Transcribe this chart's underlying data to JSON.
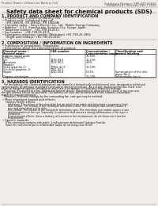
{
  "bg_color": "#f0ede8",
  "title": "Safety data sheet for chemical products (SDS)",
  "header_left": "Product Name: Lithium Ion Battery Cell",
  "header_right_line1": "Substance Number: SBR-049-00010",
  "header_right_line2": "Established / Revision: Dec.7.2010",
  "section1_title": "1. PRODUCT AND COMPANY IDENTIFICATION",
  "section1_lines": [
    "• Product name: Lithium Ion Battery Cell",
    "• Product code: Cylindrical-type cell",
    "    (IFR 18650U, IFR 18650L, IFR 18650A)",
    "• Company name:   Sanyo Electric Co., Ltd., Mobile Energy Company",
    "• Address:   2-2-1  Kamikosaka, Sumoto-City, Hyogo, Japan",
    "• Telephone number:   +81-799-26-4111",
    "• Fax number:   +81-799-26-4121",
    "• Emergency telephone number (Weekdays) +81-799-26-3962",
    "    (Night and holidays) +81-799-26-4101"
  ],
  "section2_title": "2. COMPOSITION / INFORMATION ON INGREDIENTS",
  "section2_sub": "• Substance or preparation: Preparation",
  "section2_sub2": "• Information about the chemical nature of product:",
  "table_col_headers1": [
    "Chemical name /",
    "CAS number",
    "Concentration /",
    "Classification and"
  ],
  "table_col_headers2": [
    "Several name",
    "",
    "Concentration range",
    "hazard labeling"
  ],
  "table_rows": [
    [
      "Lithium cobalt oxide",
      "-",
      "30-60%",
      ""
    ],
    [
      "(LiMn-Co-Ni(Ox))",
      "",
      "",
      ""
    ],
    [
      "Iron",
      "7439-89-6",
      "10-20%",
      ""
    ],
    [
      "Aluminum",
      "7429-90-5",
      "2-6%",
      ""
    ],
    [
      "Graphite",
      "",
      "",
      ""
    ],
    [
      "(fired graphite-1)",
      "77902-42-5",
      "10-20%",
      ""
    ],
    [
      "(Un-fired graphite-1)",
      "7782-42-5",
      "",
      ""
    ],
    [
      "Copper",
      "7440-50-8",
      "5-15%",
      "Sensitization of the skin"
    ],
    [
      "",
      "",
      "",
      "group No.2"
    ],
    [
      "Organic electrolyte",
      "-",
      "10-20%",
      "Inflammable liquid"
    ]
  ],
  "section3_title": "3. HAZARDS IDENTIFICATION",
  "section3_lines": [
    "   For the battery cell, chemical substances are stored in a hermetically sealed metal case, designed to withstand",
    "temperatures by pressure-regulated construction during normal use. As a result, during normal use, there is no",
    "physical danger of ignition or explosion and there is no danger of hazardous materials leakage.",
    "   However, if exposed to a fire, added mechanical shocks, decomposed, when electric circuit or my case use,",
    "the gas release cannot be operated. The battery cell case will be breached of the extreme, hazardous",
    "materials may be released.",
    "   Moreover, if heated strongly by the surrounding fire, soot gas may be emitted."
  ],
  "section3_bullet1": "• Most important hazard and effects:",
  "section3_human": "   Human health effects:",
  "section3_human_lines": [
    "      Inhalation: The release of the electrolyte has an anesthesia action and stimulates a respiratory tract.",
    "      Skin contact: The release of the electrolyte stimulates a skin. The electrolyte skin contact causes a",
    "      sore and stimulation on the skin.",
    "      Eye contact: The release of the electrolyte stimulates eyes. The electrolyte eye contact causes a sore",
    "      and stimulation on the eye. Especially, a substance that causes a strong inflammation of the eyes is",
    "      contained.",
    "      Environmental effects: Since a battery cell remains in the environment, do not throw out it into the",
    "      environment."
  ],
  "section3_specific": "• Specific hazards:",
  "section3_specific_lines": [
    "   If the electrolyte contacts with water, it will generate detrimental hydrogen fluoride.",
    "   Since the said electrolyte is inflammable liquid, do not bring close to fire."
  ]
}
